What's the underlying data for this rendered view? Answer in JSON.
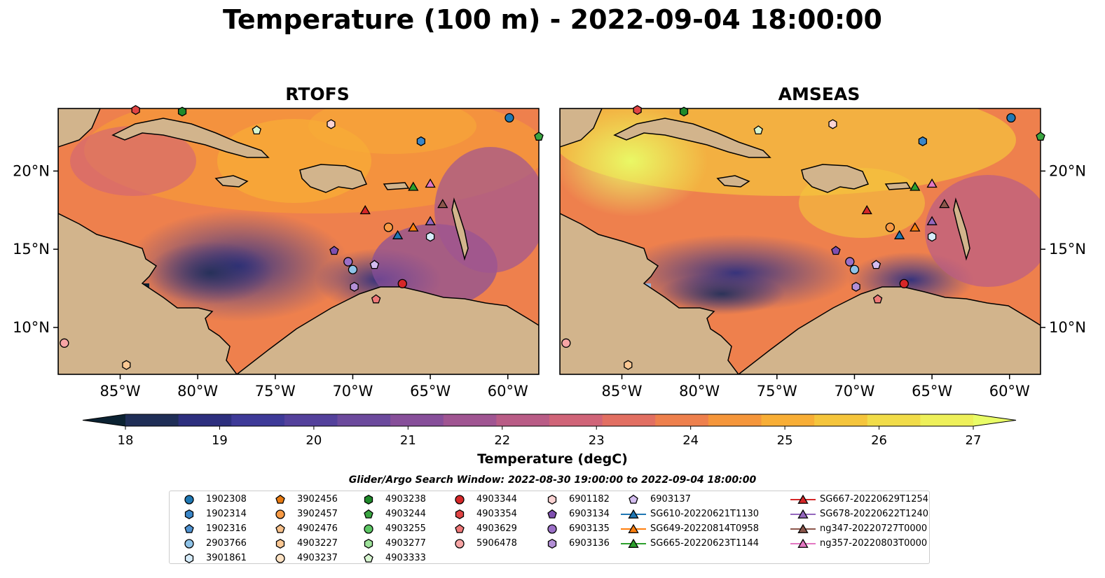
{
  "title": "Temperature (100 m) - 2022-09-04 18:00:00",
  "panels": [
    {
      "title": "RTOFS"
    },
    {
      "title": "AMSEAS"
    }
  ],
  "map": {
    "lon_range": [
      -89,
      -58
    ],
    "lat_range": [
      7,
      24
    ],
    "x_ticks": [
      "85°W",
      "80°W",
      "75°W",
      "70°W",
      "65°W",
      "60°W"
    ],
    "y_ticks": [
      "20°N",
      "15°N",
      "10°N"
    ],
    "land_color": "#d2b48c",
    "out_of_range_color": "#95b6e0"
  },
  "colorbar": {
    "label": "Temperature (degC)",
    "ticks": [
      "18",
      "19",
      "20",
      "21",
      "22",
      "23",
      "24",
      "25",
      "26",
      "27"
    ],
    "min": 18,
    "max": 27,
    "colors": [
      "#0b2232",
      "#1f2e57",
      "#2d2f7e",
      "#3e3a98",
      "#54419c",
      "#6c4a9d",
      "#874f9a",
      "#a05592",
      "#b95c86",
      "#d06478",
      "#e26f62",
      "#ee804d",
      "#f5963b",
      "#f8ae36",
      "#f5c53c",
      "#f1dc49",
      "#eef05a",
      "#e9fc67"
    ]
  },
  "search_window": "Glider/Argo Search Window: 2022-08-30 19:00:00 to 2022-09-04 18:00:00",
  "legend": [
    [
      {
        "label": "1902308",
        "marker": "circle",
        "color": "#1f78b4"
      },
      {
        "label": "1902314",
        "marker": "hexagon",
        "color": "#3a86c8"
      },
      {
        "label": "1902316",
        "marker": "pentagon",
        "color": "#4f92d1"
      },
      {
        "label": "2903766",
        "marker": "circle",
        "color": "#8fc3e8"
      },
      {
        "label": "3901861",
        "marker": "hexagon",
        "color": "#d6ecfa"
      }
    ],
    [
      {
        "label": "3902456",
        "marker": "pentagon",
        "color": "#e87a10"
      },
      {
        "label": "3902457",
        "marker": "circle",
        "color": "#f79a45"
      },
      {
        "label": "4902476",
        "marker": "pentagon",
        "color": "#f7c08a"
      },
      {
        "label": "4903227",
        "marker": "hexagon",
        "color": "#fbc894"
      },
      {
        "label": "4903237",
        "marker": "circle",
        "color": "#fde2c3"
      }
    ],
    [
      {
        "label": "4903238",
        "marker": "hexagon",
        "color": "#1f8a2a"
      },
      {
        "label": "4903244",
        "marker": "pentagon",
        "color": "#3aa541"
      },
      {
        "label": "4903255",
        "marker": "circle",
        "color": "#5cc663"
      },
      {
        "label": "4903277",
        "marker": "hexagon",
        "color": "#9ee29a"
      },
      {
        "label": "4903333",
        "marker": "pentagon",
        "color": "#d7f5d0"
      }
    ],
    [
      {
        "label": "4903344",
        "marker": "circle",
        "color": "#d62728"
      },
      {
        "label": "4903354",
        "marker": "hexagon",
        "color": "#e14444"
      },
      {
        "label": "4903629",
        "marker": "pentagon",
        "color": "#ef7878"
      },
      {
        "label": "5906478",
        "marker": "circle",
        "color": "#f7a5a5"
      }
    ],
    [
      {
        "label": "6901182",
        "marker": "hexagon",
        "color": "#fbd3d3"
      },
      {
        "label": "6903134",
        "marker": "pentagon",
        "color": "#7f4fb0"
      },
      {
        "label": "6903135",
        "marker": "circle",
        "color": "#9b6fc7"
      },
      {
        "label": "6903136",
        "marker": "hexagon",
        "color": "#b38fd6"
      }
    ],
    [
      {
        "label": "6903137",
        "marker": "pentagon",
        "color": "#d4bdf0"
      },
      {
        "label": "SG610-20220621T1130",
        "marker": "triangle",
        "color": "#1f77b4",
        "line": true
      },
      {
        "label": "SG649-20220814T0958",
        "marker": "triangle",
        "color": "#ff7f0e",
        "line": true
      },
      {
        "label": "SG665-20220623T1144",
        "marker": "triangle",
        "color": "#2ca02c",
        "line": true
      }
    ],
    [
      {
        "label": "SG667-20220629T1254",
        "marker": "triangle",
        "color": "#d62728",
        "line": true
      },
      {
        "label": "SG678-20220622T1240",
        "marker": "triangle",
        "color": "#9467bd",
        "line": true
      },
      {
        "label": "ng347-20220727T0000",
        "marker": "triangle",
        "color": "#8c564b",
        "line": true
      },
      {
        "label": "ng357-20220803T0000",
        "marker": "triangle",
        "color": "#e377c2",
        "line": true
      }
    ]
  ],
  "platform_positions": [
    {
      "id": "1902308",
      "lon": -59.9,
      "lat": 23.4
    },
    {
      "id": "1902314",
      "lon": -65.6,
      "lat": 21.9
    },
    {
      "id": "3901861",
      "lon": -65.0,
      "lat": 15.8
    },
    {
      "id": "2903766",
      "lon": -70.0,
      "lat": 13.7
    },
    {
      "id": "3902457",
      "lon": -67.7,
      "lat": 16.4
    },
    {
      "id": "4903227",
      "lon": -84.6,
      "lat": 7.6
    },
    {
      "id": "4903238",
      "lon": -81.0,
      "lat": 23.8
    },
    {
      "id": "4903244",
      "lon": -57.9,
      "lat": 22.2
    },
    {
      "id": "4903333",
      "lon": -76.2,
      "lat": 22.6
    },
    {
      "id": "4903344",
      "lon": -66.8,
      "lat": 12.8
    },
    {
      "id": "4903354",
      "lon": -84.0,
      "lat": 23.9
    },
    {
      "id": "4903629",
      "lon": -68.5,
      "lat": 11.8
    },
    {
      "id": "5906478",
      "lon": -88.6,
      "lat": 9.0
    },
    {
      "id": "6901182",
      "lon": -71.4,
      "lat": 23.0
    },
    {
      "id": "6903134",
      "lon": -71.2,
      "lat": 14.9
    },
    {
      "id": "6903135",
      "lon": -70.3,
      "lat": 14.2
    },
    {
      "id": "6903136",
      "lon": -69.9,
      "lat": 12.6
    },
    {
      "id": "6903137",
      "lon": -68.6,
      "lat": 14.0
    },
    {
      "id": "SG610-20220621T1130",
      "lon": -67.1,
      "lat": 15.9
    },
    {
      "id": "SG649-20220814T0958",
      "lon": -66.1,
      "lat": 16.4
    },
    {
      "id": "SG665-20220623T1144",
      "lon": -66.1,
      "lat": 19.0
    },
    {
      "id": "SG667-20220629T1254",
      "lon": -69.2,
      "lat": 17.5
    },
    {
      "id": "SG678-20220622T1240",
      "lon": -65.0,
      "lat": 16.8
    },
    {
      "id": "ng347-20220727T0000",
      "lon": -64.2,
      "lat": 17.9
    },
    {
      "id": "ng357-20220803T0000",
      "lon": -65.0,
      "lat": 19.2
    }
  ]
}
